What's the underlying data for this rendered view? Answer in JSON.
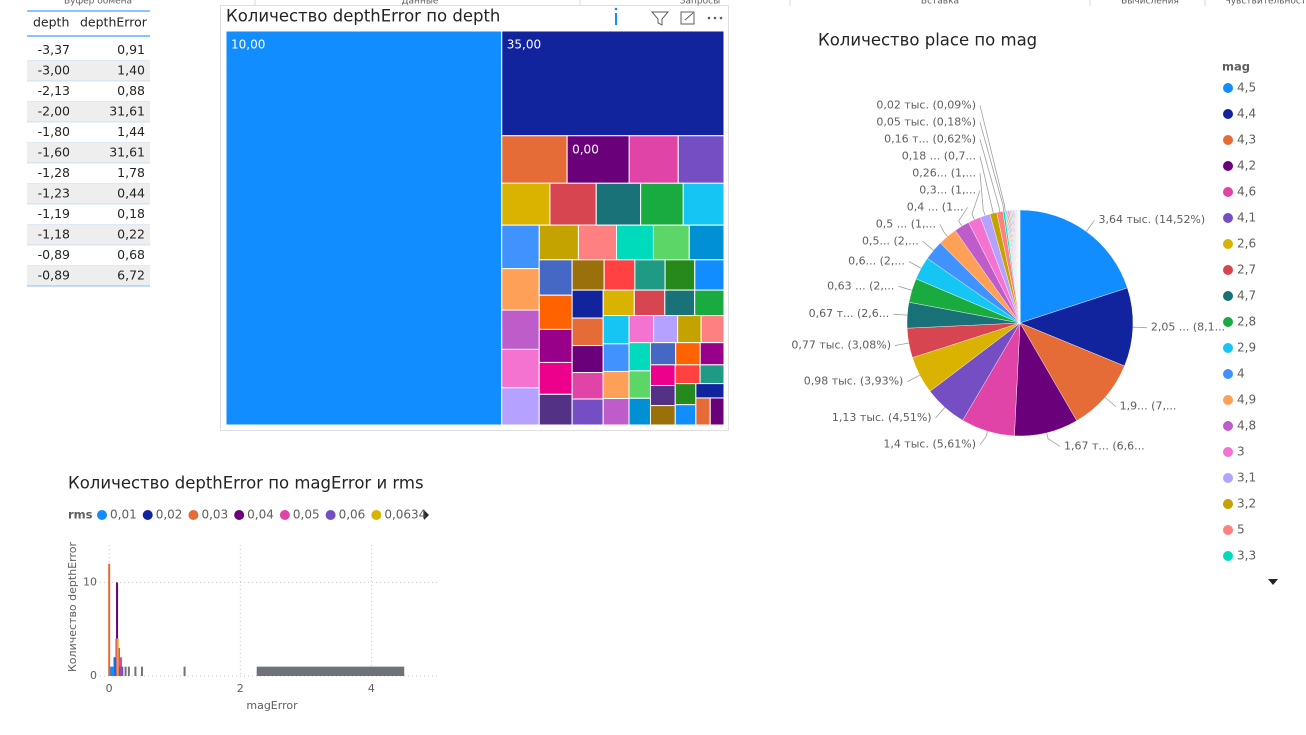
{
  "ribbon": [
    "Буфер обмена",
    "Данные",
    "Запросы",
    "Вставка",
    "Вычисления",
    "Чувствительность"
  ],
  "palette": [
    "#118DFF",
    "#12239E",
    "#E66C37",
    "#6B007B",
    "#E044A7",
    "#744EC2",
    "#D9B300",
    "#D64550",
    "#197278",
    "#1AAB40",
    "#15C6F4",
    "#4092FF",
    "#FFA058",
    "#BE5DC9",
    "#F472D0",
    "#B5A1FF",
    "#C4A200",
    "#FF8080",
    "#00DBBC",
    "#5BD667",
    "#0091D5",
    "#4668C5",
    "#FF6300",
    "#99008A",
    "#EC008C",
    "#533285",
    "#99700A",
    "#FF4141",
    "#1F9A85",
    "#25891C"
  ],
  "table": {
    "columns": [
      "depth",
      "depthError"
    ],
    "rows": [
      [
        "-3,37",
        "0,91"
      ],
      [
        "-3,00",
        "1,40"
      ],
      [
        "-2,13",
        "0,88"
      ],
      [
        "-2,00",
        "31,61"
      ],
      [
        "-1,80",
        "1,44"
      ],
      [
        "-1,60",
        "31,61"
      ],
      [
        "-1,28",
        "1,78"
      ],
      [
        "-1,23",
        "0,44"
      ],
      [
        "-1,19",
        "0,18"
      ],
      [
        "-1,18",
        "0,22"
      ],
      [
        "-0,89",
        "0,68"
      ],
      [
        "-0,89",
        "6,72"
      ]
    ]
  },
  "chart_data": [
    {
      "type": "treemap",
      "title": "Количество depthError по depth",
      "categories": [
        "10,00",
        "35,00",
        null,
        "0,00",
        null,
        null,
        null,
        null,
        null,
        null,
        null,
        null,
        null,
        null,
        null,
        null,
        null,
        null,
        null,
        null,
        null,
        null,
        null,
        null,
        null,
        null,
        null,
        null,
        null,
        null,
        null,
        null,
        null,
        null,
        null,
        null,
        null,
        null,
        null,
        null,
        null,
        null,
        null,
        null,
        null,
        null,
        null,
        null,
        null,
        null,
        null,
        null,
        null,
        null,
        null,
        null,
        null,
        null,
        null,
        null,
        null,
        null,
        null,
        null
      ],
      "values": [
        14000,
        3000,
        400,
        380,
        300,
        280,
        260,
        250,
        240,
        230,
        220,
        210,
        200,
        190,
        185,
        180,
        175,
        170,
        165,
        160,
        155,
        150,
        145,
        140,
        135,
        130,
        125,
        120,
        118,
        116,
        114,
        112,
        110,
        108,
        106,
        104,
        102,
        100,
        98,
        96,
        94,
        92,
        90,
        88,
        86,
        84,
        82,
        80,
        78,
        76,
        74,
        72,
        70,
        68,
        66,
        64,
        62,
        60,
        58,
        56,
        54,
        52,
        50,
        48
      ]
    },
    {
      "type": "pie",
      "title": "Количество place по mag",
      "legend_title": "mag",
      "legend": "right",
      "categories": [
        "4,5",
        "4,4",
        "4,3",
        "4,2",
        "4,6",
        "4,1",
        "2,6",
        "2,7",
        "4,7",
        "2,8",
        "2,9",
        "4",
        "4,9",
        "4,8",
        "3",
        "3,1",
        "3,2",
        "5",
        "3,3",
        null,
        null,
        null,
        null,
        null,
        null,
        null,
        null,
        null,
        null,
        null,
        null,
        null,
        null,
        null,
        null,
        null,
        null,
        null,
        null,
        null,
        null,
        null,
        null,
        null,
        null,
        null,
        null,
        null,
        null,
        null
      ],
      "values": [
        3640,
        2050,
        1900,
        1670,
        1400,
        1130,
        980,
        770,
        670,
        630,
        600,
        520,
        500,
        400,
        330,
        260,
        180,
        160,
        50,
        20,
        19,
        19,
        18,
        18,
        17,
        17,
        16,
        16,
        15,
        15,
        14,
        14,
        13,
        13,
        12,
        12,
        11,
        11,
        10,
        10,
        10,
        9,
        9,
        9,
        8,
        8,
        8,
        7,
        7,
        6
      ],
      "value_labels": [
        "3,64 тыс. (14,52%)",
        "2,05 ... (8,1...",
        "1,9... (7,...",
        "1,67 т... (6,6...",
        "1,4 тыс. (5,61%)",
        "1,13 тыс. (4,51%)",
        "0,98 тыс. (3,93%)",
        "0,77 тыс. (3,08%)",
        "0,67 т... (2,6...",
        "0,63 ... (2,...",
        "0,6... (2,...",
        "0,5... (2,...",
        "0,5 ... (1,...",
        "0,4 ... (1...",
        "0,3... (1,...",
        "0,26... (1,...",
        "0,18 ... (0,7...",
        "0,16 т... (0,62%)",
        "0,05 тыс. (0,18%)",
        "0,02 тыс. (0,09%)",
        null,
        null,
        null,
        null,
        null,
        null,
        null,
        null,
        null,
        null,
        null,
        null,
        null,
        null,
        null,
        null,
        null,
        null,
        null,
        null,
        null,
        null,
        null,
        null,
        null,
        null,
        null,
        null,
        null,
        null
      ]
    },
    {
      "type": "bar",
      "title": "Количество depthError по magError и rms",
      "legend_title": "rms",
      "xlabel": "magError",
      "ylabel": "Количество depthError",
      "xlim": [
        -0.14,
        5.0
      ],
      "ylim": [
        0,
        14
      ],
      "xticks": [
        0,
        2,
        4
      ],
      "yticks": [
        0,
        10
      ],
      "grid": true,
      "series": [
        {
          "name": "0,01",
          "color": "#118DFF",
          "x": [
            0.02,
            0.05,
            0.08
          ],
          "values": [
            1,
            1,
            2
          ]
        },
        {
          "name": "0,02",
          "color": "#12239E",
          "x": [
            0.1,
            0.14
          ],
          "values": [
            2,
            1
          ]
        },
        {
          "name": "0,03",
          "color": "#E66C37",
          "x": [
            0
          ],
          "values": [
            12
          ]
        },
        {
          "name": "0,04",
          "color": "#6B007B",
          "x": [
            0.12
          ],
          "values": [
            10
          ]
        },
        {
          "name": "0,05",
          "color": "#E044A7",
          "x": [
            0.11,
            0.15,
            0.18
          ],
          "values": [
            4,
            3,
            2
          ]
        },
        {
          "name": "0,06",
          "color": "#744EC2",
          "x": [
            0.16,
            0.2
          ],
          "values": [
            1,
            1
          ]
        },
        {
          "name": "0,0634",
          "color": "#D9B300",
          "x": [
            0.13
          ],
          "values": [
            4
          ]
        },
        {
          "name": null,
          "color": "#6F7378",
          "x": [
            0.25,
            0.3,
            0.4,
            0.5,
            1.15
          ],
          "values": [
            1,
            1,
            1,
            1,
            1
          ]
        },
        {
          "name": null,
          "color": "#6F7378",
          "bins": [
            2.25,
            4.5
          ],
          "values": [
            1
          ]
        }
      ]
    }
  ]
}
